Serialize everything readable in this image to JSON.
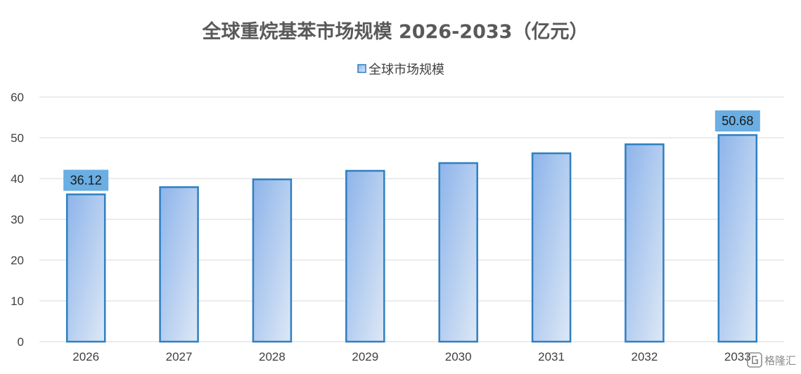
{
  "chart_data": {
    "type": "bar",
    "title": "全球重烷基苯市场规模 2026-2033（亿元）",
    "categories": [
      "2026",
      "2027",
      "2028",
      "2029",
      "2030",
      "2031",
      "2032",
      "2033"
    ],
    "series": [
      {
        "name": "全球市场规模",
        "values": [
          36.12,
          37.9,
          39.8,
          41.9,
          43.8,
          46.2,
          48.4,
          50.68
        ]
      }
    ],
    "data_labels": [
      {
        "category": "2026",
        "text": "36.12"
      },
      {
        "category": "2033",
        "text": "50.68"
      }
    ],
    "ylim": [
      0,
      60
    ],
    "yticks": [
      "0",
      "10",
      "20",
      "30",
      "40",
      "50",
      "60"
    ],
    "xlabel": "",
    "ylabel": "",
    "grid": true,
    "legend": "top-center",
    "colors": {
      "bar_top": "#8db4ea",
      "bar_bottom": "#dde8f6",
      "bar_border": "#2e7fc1",
      "label_bg": "#6aaee3",
      "grid": "#d9d9d9"
    }
  },
  "watermark": {
    "text": "格隆汇",
    "icon": "gelonghui-logo-icon"
  }
}
